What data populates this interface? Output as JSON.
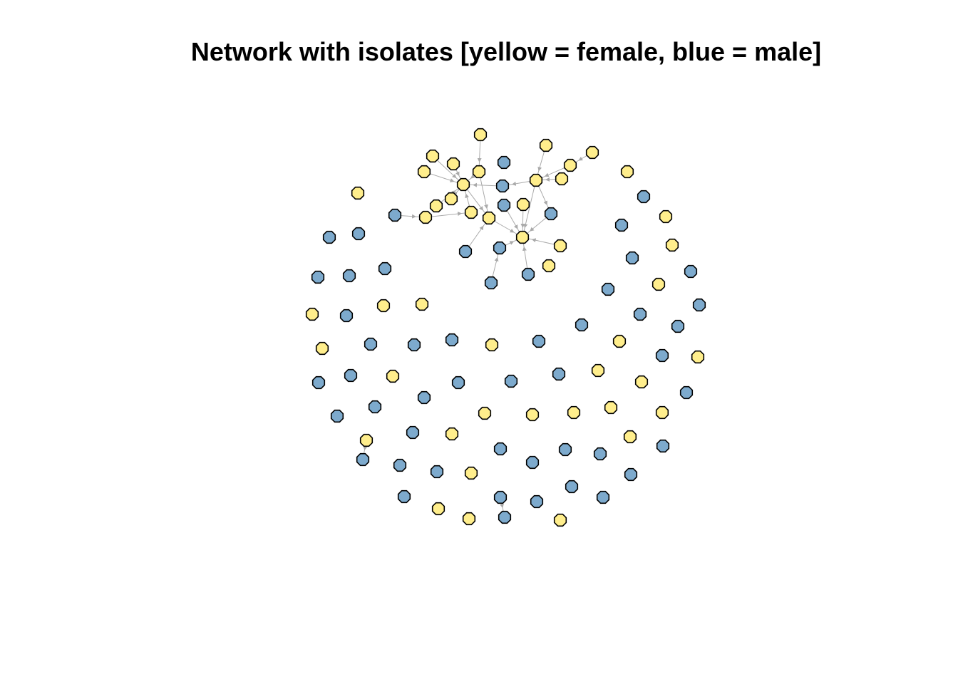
{
  "title": "Network with isolates [yellow = female, blue = male]",
  "colors": {
    "female": "#FFEE8C",
    "male": "#7DAACD",
    "edge": "#AAAAAA",
    "outline": "#000000"
  },
  "network": {
    "layout": "force-directed",
    "node_count": 100,
    "edge_count": 30,
    "female_count": 44,
    "male_count": 56
  }
}
